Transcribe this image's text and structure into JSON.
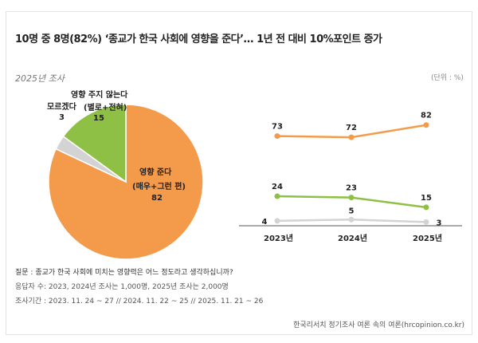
{
  "title": "10명 중 8명(82%) ‘종교가 한국 사회에 영향을 준다’… 1년 전 대비 10%포인트 증가",
  "subtitle": "2025년 조사",
  "unit": "(단위 : %)",
  "colors": {
    "influence": "#f39a4b",
    "no_influence": "#8dc044",
    "dont_know": "#d3d3d3"
  },
  "chart_data": [
    {
      "type": "pie",
      "title": "2025년 조사",
      "slices": [
        {
          "label": "영향 준다",
          "sublabel": "(매우+그런 편)",
          "value": 82,
          "color": "#f39a4b"
        },
        {
          "label": "모르겠다",
          "value": 3,
          "color": "#d3d3d3"
        },
        {
          "label": "영향 주지 않는다",
          "sublabel": "(별로+전혀)",
          "value": 15,
          "color": "#8dc044"
        }
      ]
    },
    {
      "type": "line",
      "categories": [
        "2023년",
        "2024년",
        "2025년"
      ],
      "ylim": [
        0,
        100
      ],
      "grid": false,
      "series": [
        {
          "values": [
            73,
            72,
            82
          ],
          "color": "#f39a4b"
        },
        {
          "values": [
            24,
            23,
            15
          ],
          "color": "#8dc044"
        },
        {
          "values": [
            4,
            5,
            3
          ],
          "color": "#d3d3d3"
        }
      ]
    }
  ],
  "notes": [
    "질문 : 종교가 한국 사회에 미치는 영향력은 어느 정도라고 생각하십니까?",
    "응답자 수: 2023, 2024년 조사는 1,000명, 2025년 조사는 2,000명",
    "조사기간 : 2023. 11. 24 ~ 27 // 2024. 11. 22 ~ 25 // 2025. 11. 21 ~ 26"
  ],
  "source": "한국리서치 정기조사 여론 속의 여론(hrcopinion.co.kr)"
}
